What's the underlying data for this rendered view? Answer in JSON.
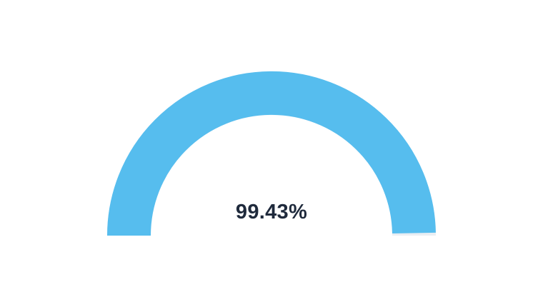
{
  "chart_data": {
    "type": "gauge",
    "value": 99.43,
    "min": 0,
    "max": 100,
    "value_label": "99.43%",
    "colors": {
      "fill": "#56bdee",
      "track": "#e9eef3",
      "text": "#1f2a3c"
    }
  }
}
